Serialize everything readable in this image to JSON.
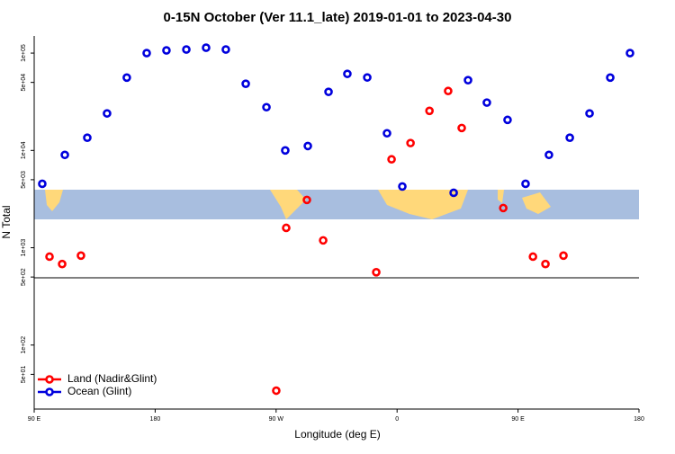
{
  "chart_data": {
    "type": "scatter",
    "title": "0-15N October (Ver 11.1_late)   2019-01-01 to 2023-04-30",
    "x_label": "Longitude (deg E)",
    "y_label": "N Total",
    "log_y": true,
    "legend": "bottom-left",
    "xlim": [
      90,
      540
    ],
    "ylim": [
      22,
      150000
    ],
    "xticks": [
      {
        "value": 90,
        "label": "90 E"
      },
      {
        "value": 180,
        "label": "180"
      },
      {
        "value": 270,
        "label": "90 W"
      },
      {
        "value": 360,
        "label": "0"
      },
      {
        "value": 450,
        "label": "90 E"
      },
      {
        "value": 540,
        "label": "180"
      }
    ],
    "yticks": [
      {
        "value": 50,
        "label": "5e+01"
      },
      {
        "value": 100,
        "label": "1e+02"
      },
      {
        "value": 500,
        "label": "5e+02"
      },
      {
        "value": 1000,
        "label": "1e+03"
      },
      {
        "value": 5000,
        "label": "5e+03"
      },
      {
        "value": 10000,
        "label": "1e+04"
      },
      {
        "value": 50000,
        "label": "5e+04"
      },
      {
        "value": 100000,
        "label": "1e+05"
      }
    ],
    "series": [
      {
        "name": "Land (Nadir&Glint)",
        "color": "#ff0000",
        "x": [
          101.4,
          110.8,
          124.8,
          270.1,
          277.5,
          292.9,
          305.0,
          344.5,
          355.9,
          370.0,
          384.1,
          398.0,
          408.1,
          439.0,
          461.1,
          470.4,
          483.8
        ],
        "values": [
          810,
          680,
          830,
          34,
          1600,
          3100,
          1190,
          560,
          8100,
          11900,
          25500,
          40800,
          17000,
          2560,
          810,
          680,
          830
        ]
      },
      {
        "name": "Ocean (Glint)",
        "color": "#0000dd",
        "x": [
          96.0,
          112.8,
          129.5,
          144.2,
          158.9,
          173.7,
          188.4,
          203.2,
          217.9,
          232.6,
          247.4,
          262.8,
          276.8,
          293.6,
          309.0,
          323.0,
          337.8,
          352.5,
          363.9,
          402.1,
          412.8,
          426.8,
          442.2,
          455.6,
          473.0,
          488.5,
          503.2,
          518.6,
          533.3
        ],
        "values": [
          4540,
          9000,
          13500,
          24000,
          56000,
          100000,
          106600,
          108900,
          113600,
          108900,
          48400,
          27800,
          10000,
          11100,
          40000,
          61200,
          56200,
          15000,
          4260,
          3670,
          52700,
          31000,
          20600,
          4540,
          9000,
          13500,
          24000,
          56000,
          100000
        ]
      }
    ]
  }
}
